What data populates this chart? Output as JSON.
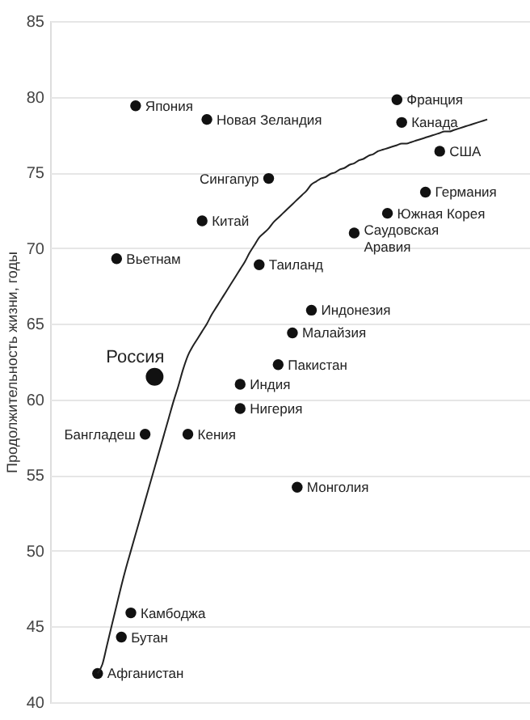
{
  "chart_data": {
    "type": "scatter",
    "ylabel": "Продолжительность жизни, годы",
    "categories": [
      null,
      null,
      null,
      null,
      null,
      null,
      null,
      null,
      null,
      null,
      null,
      null,
      null,
      null,
      null,
      null,
      null,
      null,
      null,
      null,
      null,
      null,
      null,
      null,
      null,
      null,
      null,
      null,
      null,
      null,
      null,
      null,
      null,
      null,
      null,
      null,
      null,
      null,
      null,
      null,
      null,
      null,
      null,
      null,
      null,
      null,
      null,
      null,
      null,
      null,
      null,
      null,
      null,
      null,
      null,
      null,
      null,
      null,
      null,
      null,
      null,
      null,
      null,
      null,
      null,
      null,
      null,
      null,
      null,
      null,
      null,
      null,
      null,
      null,
      null,
      null,
      null,
      null,
      null,
      null,
      null,
      null,
      null
    ],
    "ylim": [
      40,
      85
    ],
    "yticks": [
      40,
      45,
      50,
      55,
      60,
      65,
      70,
      75,
      80,
      85
    ],
    "grid": "y",
    "tick_labels": "y",
    "marker": "circle",
    "series": [
      {
        "color": "#111111",
        "values": [
          41.9,
          null,
          null,
          null,
          69.3,
          44.3,
          null,
          45.9,
          79.4,
          null,
          57.7,
          null,
          null,
          null,
          null,
          null,
          null,
          null,
          null,
          57.7,
          null,
          null,
          71.8,
          78.5,
          null,
          null,
          null,
          null,
          null,
          null,
          61.0,
          null,
          null,
          null,
          68.9,
          null,
          74.6,
          null,
          62.3,
          null,
          null,
          64.4,
          54.2,
          null,
          null,
          65.9,
          null,
          null,
          null,
          null,
          null,
          null,
          null,
          null,
          71.0,
          null,
          null,
          null,
          null,
          null,
          null,
          72.3,
          null,
          79.8,
          78.3,
          null,
          null,
          null,
          null,
          73.7,
          null,
          null,
          76.4,
          null,
          null,
          null,
          null,
          null,
          null,
          null,
          null,
          null,
          null
        ],
        "value_labels": [
          "Афганистан",
          null,
          null,
          null,
          "Вьетнам",
          "Бутан",
          null,
          "Камбоджа",
          "Япония",
          null,
          "Бангладеш",
          null,
          null,
          null,
          null,
          null,
          null,
          null,
          null,
          "Кения",
          null,
          null,
          "Китай",
          "Новая Зеландия",
          null,
          null,
          null,
          null,
          null,
          null,
          "Индия",
          null,
          null,
          null,
          "Таиланд",
          null,
          "Сингапур",
          null,
          "Пакистан",
          null,
          null,
          "Малайзия",
          "Монголия",
          null,
          null,
          "Индонезия",
          null,
          null,
          null,
          null,
          null,
          null,
          null,
          null,
          "Саудовская\nАравия",
          null,
          null,
          null,
          null,
          null,
          null,
          "Южная Корея",
          null,
          "Франция",
          "Канада",
          null,
          null,
          null,
          null,
          "Германия",
          null,
          null,
          "США",
          null,
          null,
          null,
          null,
          null,
          null,
          null,
          null,
          null,
          null
        ]
      },
      {
        "type": "scatter",
        "color": "#111111",
        "values": [
          null,
          null,
          null,
          null,
          null,
          null,
          null,
          null,
          null,
          null,
          null,
          null,
          61.5,
          null,
          null,
          null,
          null,
          null,
          null,
          null,
          null,
          null,
          null,
          null,
          null,
          null,
          null,
          null,
          null,
          null,
          null,
          null,
          null,
          null,
          null,
          null,
          null,
          null,
          null,
          null,
          null,
          null,
          null,
          null,
          null,
          null,
          null,
          null,
          null,
          null,
          null,
          null,
          null,
          null,
          null,
          null,
          null,
          null,
          null,
          null,
          null,
          null,
          null,
          null,
          null,
          null,
          null,
          null,
          null,
          null,
          null,
          null,
          null,
          null,
          null,
          null,
          null,
          null,
          null,
          null,
          null,
          null,
          null
        ],
        "value_labels": [
          null,
          null,
          null,
          null,
          null,
          null,
          null,
          null,
          null,
          null,
          null,
          null,
          "Россия",
          null,
          null,
          null,
          null,
          null,
          null,
          null,
          null,
          null,
          null,
          null,
          null,
          null,
          null,
          null,
          null,
          null,
          null,
          null,
          null,
          null,
          null,
          null,
          null,
          null,
          null,
          null,
          null,
          null,
          null,
          null,
          null,
          null,
          null,
          null,
          null,
          null,
          null,
          null,
          null,
          null,
          null,
          null,
          null,
          null,
          null,
          null,
          null,
          null,
          null,
          null,
          null,
          null,
          null,
          null,
          null,
          null,
          null,
          null,
          null,
          null,
          null,
          null,
          null,
          null,
          null,
          null,
          null,
          null,
          null
        ]
      },
      {
        "type": "line",
        "marker": "none",
        "color": "#222222",
        "values": [
          41.9,
          42.5,
          43.8,
          45.1,
          46.4,
          47.7,
          48.9,
          50.0,
          51.1,
          52.2,
          53.3,
          54.4,
          55.5,
          56.6,
          57.7,
          58.8,
          59.9,
          60.9,
          62.0,
          62.9,
          63.5,
          64.0,
          64.5,
          65.0,
          65.6,
          66.1,
          66.6,
          67.1,
          67.6,
          68.1,
          68.6,
          69.1,
          69.7,
          70.2,
          70.7,
          71.0,
          71.3,
          71.7,
          72.0,
          72.3,
          72.6,
          72.9,
          73.2,
          73.5,
          73.8,
          74.2,
          74.4,
          74.6,
          74.7,
          74.9,
          75.0,
          75.2,
          75.3,
          75.5,
          75.6,
          75.8,
          75.9,
          76.1,
          76.2,
          76.4,
          76.5,
          76.6,
          76.7,
          76.8,
          76.9,
          76.9,
          77.0,
          77.1,
          77.2,
          77.3,
          77.4,
          77.5,
          77.6,
          77.7,
          77.7,
          77.8,
          77.9,
          78.0,
          78.1,
          78.2,
          78.3,
          78.4,
          78.5
        ]
      },
      {
        "type": "scatter",
        "color": "#111111",
        "values": [
          null,
          null,
          null,
          null,
          null,
          null,
          null,
          null,
          null,
          null,
          null,
          null,
          null,
          null,
          null,
          null,
          null,
          null,
          null,
          null,
          null,
          null,
          null,
          null,
          null,
          null,
          null,
          null,
          null,
          null,
          59.4,
          null,
          null,
          null,
          null,
          null,
          null,
          null,
          null,
          null,
          null,
          null,
          null,
          null,
          null,
          null,
          null,
          null,
          null,
          null,
          null,
          null,
          null,
          null,
          null,
          null,
          null,
          null,
          null,
          null,
          null,
          null,
          null,
          null,
          null,
          null,
          null,
          null,
          null,
          null,
          null,
          null,
          null,
          null,
          null,
          null,
          null,
          null,
          null,
          null,
          null,
          null,
          null
        ],
        "value_labels": [
          null,
          null,
          null,
          null,
          null,
          null,
          null,
          null,
          null,
          null,
          null,
          null,
          null,
          null,
          null,
          null,
          null,
          null,
          null,
          null,
          null,
          null,
          null,
          null,
          null,
          null,
          null,
          null,
          null,
          null,
          "Нигерия",
          null,
          null,
          null,
          null,
          null,
          null,
          null,
          null,
          null,
          null,
          null,
          null,
          null,
          null,
          null,
          null,
          null,
          null,
          null,
          null,
          null,
          null,
          null,
          null,
          null,
          null,
          null,
          null,
          null,
          null,
          null,
          null,
          null,
          null,
          null,
          null,
          null,
          null,
          null,
          null,
          null,
          null,
          null,
          null,
          null,
          null,
          null,
          null,
          null,
          null,
          null,
          null
        ]
      }
    ]
  }
}
